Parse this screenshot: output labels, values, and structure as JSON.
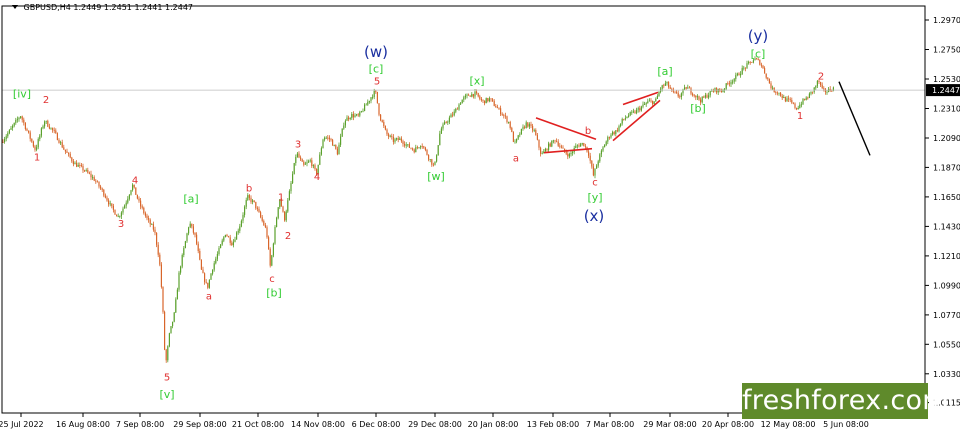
{
  "header": {
    "symbol": "GBPUSD,H4",
    "open": "1.2449",
    "high": "1.2451",
    "low": "1.2441",
    "close": "1.2447"
  },
  "watermark": {
    "brand": "freshforex.com"
  },
  "colors": {
    "up": "#5aa02c",
    "down": "#d8652a",
    "wave_green": "#33cc33",
    "wave_red": "#e03030",
    "wave_blue": "#1a2fa0",
    "axis": "#000000",
    "last_price_bg": "#000000",
    "watermark_bg": "#5f8a2b",
    "trend": "#e02020"
  },
  "chart_data": {
    "type": "candlestick",
    "symbol": "GBPUSD",
    "timeframe": "H4",
    "ylim": [
      1.0075,
      1.3
    ],
    "xlim": [
      0,
      960
    ],
    "y_ticks": [
      "1.2970",
      "1.2750",
      "1.2530",
      "1.2310",
      "1.2090",
      "1.1870",
      "1.1650",
      "1.1430",
      "1.1210",
      "1.0990",
      "1.0770",
      "1.0550",
      "1.0330",
      "1.0115"
    ],
    "x_ticks": [
      {
        "label": "25 Jul 2022",
        "x": 21
      },
      {
        "label": "16 Aug 08:00",
        "x": 83
      },
      {
        "label": "7 Sep 08:00",
        "x": 140
      },
      {
        "label": "29 Sep 08:00",
        "x": 200
      },
      {
        "label": "21 Oct 08:00",
        "x": 258
      },
      {
        "label": "14 Nov 08:00",
        "x": 318
      },
      {
        "label": "6 Dec 08:00",
        "x": 376
      },
      {
        "label": "29 Dec 08:00",
        "x": 435
      },
      {
        "label": "20 Jan 08:00",
        "x": 493
      },
      {
        "label": "13 Feb 08:00",
        "x": 553
      },
      {
        "label": "7 Mar 08:00",
        "x": 610
      },
      {
        "label": "29 Mar 08:00",
        "x": 670
      },
      {
        "label": "20 Apr 08:00",
        "x": 728
      },
      {
        "label": "12 May 08:00",
        "x": 788
      },
      {
        "label": "5 Jun 08:00",
        "x": 846
      }
    ],
    "last_price": "1.2447",
    "price_path": [
      [
        2,
        1.205
      ],
      [
        12,
        1.215
      ],
      [
        22,
        1.226
      ],
      [
        30,
        1.212
      ],
      [
        37,
        1.2
      ],
      [
        46,
        1.222
      ],
      [
        56,
        1.213
      ],
      [
        66,
        1.2
      ],
      [
        76,
        1.19
      ],
      [
        86,
        1.185
      ],
      [
        96,
        1.178
      ],
      [
        106,
        1.167
      ],
      [
        113,
        1.157
      ],
      [
        120,
        1.15
      ],
      [
        127,
        1.16
      ],
      [
        134,
        1.174
      ],
      [
        141,
        1.16
      ],
      [
        149,
        1.148
      ],
      [
        156,
        1.14
      ],
      [
        161,
        1.118
      ],
      [
        164,
        1.088
      ],
      [
        167,
        1.038
      ],
      [
        171,
        1.062
      ],
      [
        176,
        1.078
      ],
      [
        181,
        1.11
      ],
      [
        186,
        1.128
      ],
      [
        191,
        1.146
      ],
      [
        197,
        1.135
      ],
      [
        203,
        1.11
      ],
      [
        209,
        1.097
      ],
      [
        214,
        1.112
      ],
      [
        220,
        1.124
      ],
      [
        227,
        1.138
      ],
      [
        234,
        1.13
      ],
      [
        242,
        1.145
      ],
      [
        249,
        1.165
      ],
      [
        256,
        1.16
      ],
      [
        262,
        1.15
      ],
      [
        268,
        1.14
      ],
      [
        272,
        1.112
      ],
      [
        276,
        1.138
      ],
      [
        281,
        1.165
      ],
      [
        286,
        1.148
      ],
      [
        291,
        1.168
      ],
      [
        298,
        1.198
      ],
      [
        305,
        1.188
      ],
      [
        312,
        1.192
      ],
      [
        318,
        1.182
      ],
      [
        325,
        1.21
      ],
      [
        332,
        1.208
      ],
      [
        339,
        1.198
      ],
      [
        346,
        1.222
      ],
      [
        353,
        1.226
      ],
      [
        360,
        1.225
      ],
      [
        367,
        1.233
      ],
      [
        373,
        1.24
      ],
      [
        377,
        1.244
      ],
      [
        381,
        1.226
      ],
      [
        388,
        1.212
      ],
      [
        395,
        1.207
      ],
      [
        402,
        1.208
      ],
      [
        409,
        1.203
      ],
      [
        416,
        1.2
      ],
      [
        423,
        1.205
      ],
      [
        430,
        1.195
      ],
      [
        436,
        1.187
      ],
      [
        442,
        1.215
      ],
      [
        449,
        1.222
      ],
      [
        456,
        1.228
      ],
      [
        463,
        1.237
      ],
      [
        470,
        1.241
      ],
      [
        477,
        1.242
      ],
      [
        484,
        1.236
      ],
      [
        491,
        1.238
      ],
      [
        498,
        1.232
      ],
      [
        505,
        1.226
      ],
      [
        511,
        1.22
      ],
      [
        516,
        1.204
      ],
      [
        522,
        1.213
      ],
      [
        528,
        1.22
      ],
      [
        536,
        1.214
      ],
      [
        543,
        1.196
      ],
      [
        550,
        1.203
      ],
      [
        557,
        1.208
      ],
      [
        564,
        1.2
      ],
      [
        571,
        1.196
      ],
      [
        578,
        1.203
      ],
      [
        585,
        1.205
      ],
      [
        590,
        1.198
      ],
      [
        595,
        1.181
      ],
      [
        600,
        1.193
      ],
      [
        606,
        1.204
      ],
      [
        612,
        1.212
      ],
      [
        618,
        1.214
      ],
      [
        624,
        1.222
      ],
      [
        630,
        1.226
      ],
      [
        636,
        1.228
      ],
      [
        643,
        1.232
      ],
      [
        650,
        1.236
      ],
      [
        657,
        1.236
      ],
      [
        662,
        1.246
      ],
      [
        668,
        1.25
      ],
      [
        674,
        1.243
      ],
      [
        681,
        1.24
      ],
      [
        688,
        1.247
      ],
      [
        695,
        1.242
      ],
      [
        702,
        1.237
      ],
      [
        709,
        1.241
      ],
      [
        716,
        1.245
      ],
      [
        723,
        1.244
      ],
      [
        730,
        1.25
      ],
      [
        737,
        1.254
      ],
      [
        744,
        1.26
      ],
      [
        750,
        1.264
      ],
      [
        756,
        1.268
      ],
      [
        762,
        1.265
      ],
      [
        768,
        1.255
      ],
      [
        774,
        1.245
      ],
      [
        780,
        1.243
      ],
      [
        786,
        1.238
      ],
      [
        792,
        1.236
      ],
      [
        798,
        1.231
      ],
      [
        804,
        1.236
      ],
      [
        810,
        1.24
      ],
      [
        816,
        1.246
      ],
      [
        820,
        1.252
      ],
      [
        824,
        1.244
      ],
      [
        829,
        1.244
      ],
      [
        834,
        1.246
      ]
    ],
    "wave_labels": [
      {
        "text": "[iv]",
        "x": 22,
        "p": 1.242,
        "color": "green"
      },
      {
        "text": "2",
        "x": 46,
        "p": 1.238,
        "color": "red"
      },
      {
        "text": "1",
        "x": 37,
        "p": 1.195,
        "color": "red"
      },
      {
        "text": "4",
        "x": 135,
        "p": 1.178,
        "color": "red"
      },
      {
        "text": "3",
        "x": 121,
        "p": 1.1455,
        "color": "red"
      },
      {
        "text": "[a]",
        "x": 191,
        "p": 1.164,
        "color": "green"
      },
      {
        "text": "5",
        "x": 167,
        "p": 1.031,
        "color": "red"
      },
      {
        "text": "[v]",
        "x": 167,
        "p": 1.0178,
        "color": "green"
      },
      {
        "text": "a",
        "x": 209,
        "p": 1.0915,
        "color": "red"
      },
      {
        "text": "b",
        "x": 249,
        "p": 1.172,
        "color": "red"
      },
      {
        "text": "c",
        "x": 272,
        "p": 1.1045,
        "color": "red"
      },
      {
        "text": "[b]",
        "x": 274,
        "p": 1.0935,
        "color": "green"
      },
      {
        "text": "1",
        "x": 281,
        "p": 1.1655,
        "color": "red"
      },
      {
        "text": "2",
        "x": 288,
        "p": 1.1365,
        "color": "red"
      },
      {
        "text": "3",
        "x": 298,
        "p": 1.205,
        "color": "red"
      },
      {
        "text": "4",
        "x": 317,
        "p": 1.1805,
        "color": "red"
      },
      {
        "text": "5",
        "x": 377,
        "p": 1.252,
        "color": "red"
      },
      {
        "text": "[c]",
        "x": 376,
        "p": 1.261,
        "color": "green"
      },
      {
        "text": "(w)",
        "x": 376,
        "p": 1.274,
        "color": "blue"
      },
      {
        "text": "[w]",
        "x": 436,
        "p": 1.1805,
        "color": "green"
      },
      {
        "text": "[x]",
        "x": 477,
        "p": 1.252,
        "color": "green"
      },
      {
        "text": "a",
        "x": 516,
        "p": 1.1945,
        "color": "red"
      },
      {
        "text": "b",
        "x": 588,
        "p": 1.215,
        "color": "red"
      },
      {
        "text": "c",
        "x": 595,
        "p": 1.1765,
        "color": "red"
      },
      {
        "text": "[y]",
        "x": 595,
        "p": 1.165,
        "color": "green"
      },
      {
        "text": "(x)",
        "x": 594,
        "p": 1.1515,
        "color": "blue"
      },
      {
        "text": "[a]",
        "x": 665,
        "p": 1.259,
        "color": "green"
      },
      {
        "text": "[b]",
        "x": 698,
        "p": 1.2315,
        "color": "green"
      },
      {
        "text": "[c]",
        "x": 758,
        "p": 1.272,
        "color": "green"
      },
      {
        "text": "(y)",
        "x": 758,
        "p": 1.286,
        "color": "blue"
      },
      {
        "text": "2",
        "x": 821,
        "p": 1.2555,
        "color": "red"
      },
      {
        "text": "1",
        "x": 800,
        "p": 1.226,
        "color": "red"
      }
    ],
    "trend_lines": [
      {
        "from": [
          536,
          1.224
        ],
        "to": [
          596,
          1.208
        ]
      },
      {
        "from": [
          544,
          1.198
        ],
        "to": [
          592,
          1.201
        ]
      },
      {
        "from": [
          623,
          1.234
        ],
        "to": [
          658,
          1.243
        ]
      },
      {
        "from": [
          613,
          1.207
        ],
        "to": [
          660,
          1.237
        ]
      }
    ],
    "forecast": {
      "from": [
        839,
        1.251
      ],
      "to": [
        870,
        1.196
      ]
    }
  }
}
